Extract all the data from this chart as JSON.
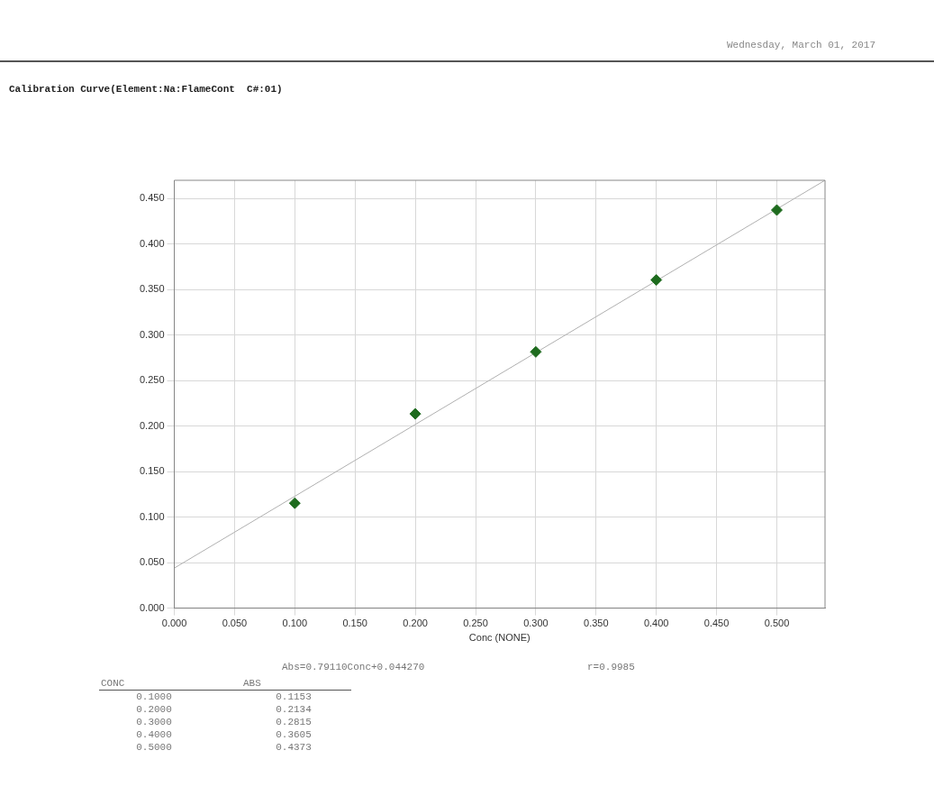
{
  "chart_data": {
    "type": "scatter",
    "title": "Calibration Curve(Element:Na:FlameCont  C#:01)",
    "xlabel": "Conc (NONE)",
    "x": [
      0.1,
      0.2,
      0.3,
      0.4,
      0.5
    ],
    "series": [
      {
        "color": "#1e6b1e",
        "marker": "diamond",
        "values": [
          0.1153,
          0.2134,
          0.2815,
          0.3605,
          0.4373
        ]
      },
      {
        "type": "line",
        "color": "#b0b0b0",
        "marker": "none",
        "x": [
          0,
          0.54
        ],
        "values": [
          0.044,
          0.47
        ]
      }
    ],
    "xlim": [
      0,
      0.54
    ],
    "xticks": [
      {
        "value": 0,
        "label": "0.000"
      },
      {
        "value": 0.05,
        "label": "0.050"
      },
      {
        "value": 0.1,
        "label": "0.100"
      },
      {
        "value": 0.15,
        "label": "0.150"
      },
      {
        "value": 0.2,
        "label": "0.200"
      },
      {
        "value": 0.25,
        "label": "0.250"
      },
      {
        "value": 0.3,
        "label": "0.300"
      },
      {
        "value": 0.35,
        "label": "0.350"
      },
      {
        "value": 0.4,
        "label": "0.400"
      },
      {
        "value": 0.45,
        "label": "0.450"
      },
      {
        "value": 0.5,
        "label": "0.500"
      }
    ],
    "ylim": [
      0,
      0.47
    ],
    "yticks": [
      {
        "value": 0,
        "label": "0.000"
      },
      {
        "value": 0.05,
        "label": "0.050"
      },
      {
        "value": 0.1,
        "label": "0.100"
      },
      {
        "value": 0.15,
        "label": "0.150"
      },
      {
        "value": 0.2,
        "label": "0.200"
      },
      {
        "value": 0.25,
        "label": "0.250"
      },
      {
        "value": 0.3,
        "label": "0.300"
      },
      {
        "value": 0.35,
        "label": "0.350"
      },
      {
        "value": 0.4,
        "label": "0.400"
      },
      {
        "value": 0.45,
        "label": "0.450"
      }
    ],
    "grid": true,
    "legend": false,
    "annotations": [
      "Wednesday, March 01, 2017",
      "Abs=0.79110Conc+0.044270",
      "r=0.9985",
      "CONC",
      "ABS",
      "0.1000",
      "0.2000",
      "0.3000",
      "0.4000",
      "0.5000",
      "0.1153",
      "0.2134",
      "0.2815",
      "0.3605",
      "0.4373"
    ]
  }
}
